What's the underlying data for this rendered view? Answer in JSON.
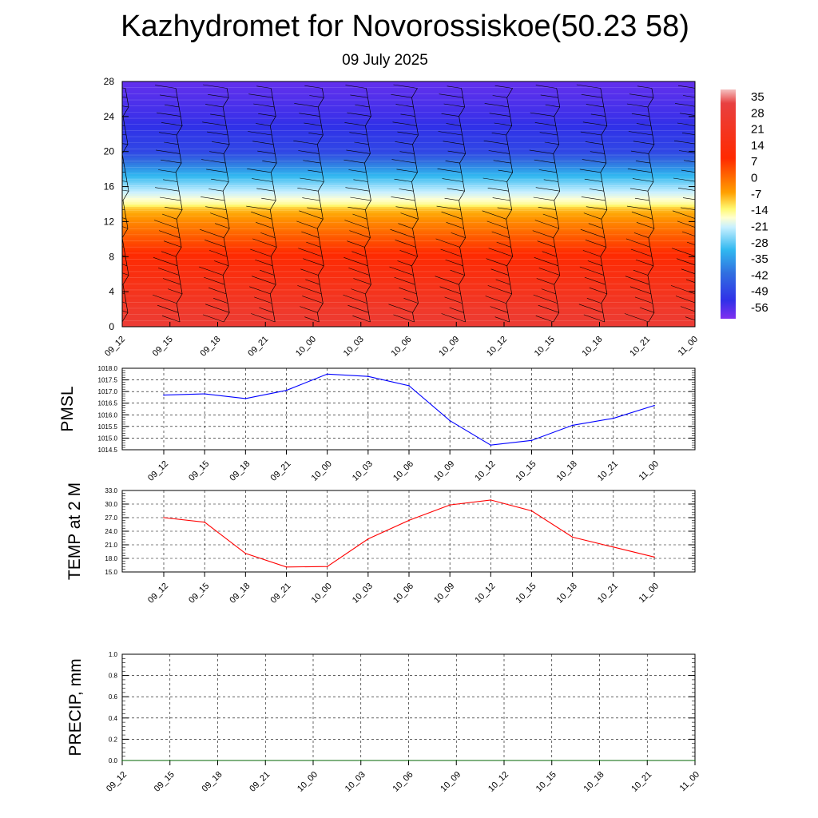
{
  "title": "Kazhydromet for Novorossiskoe(50.23 58)",
  "date": "09 July 2025",
  "colors": {
    "pmsl_line": "#0000ff",
    "temp_line": "#ff0000",
    "precip_line": "#006400",
    "barbs": "#000000"
  },
  "chart_data": [
    {
      "type": "heatmap",
      "title": "",
      "xlabel": "",
      "ylabel": "",
      "x_categories": [
        "09_12",
        "09_15",
        "09_18",
        "09_21",
        "10_00",
        "10_03",
        "10_06",
        "10_09",
        "10_12",
        "10_15",
        "10_18",
        "10_21",
        "11_00"
      ],
      "y_ticks": [
        "0",
        "4",
        "8",
        "12",
        "16",
        "20",
        "24",
        "28"
      ],
      "ylim": [
        0,
        28
      ],
      "colorbar_labels": [
        "35",
        "28",
        "21",
        "14",
        "7",
        "0",
        "-7",
        "-14",
        "-21",
        "-28",
        "-35",
        "-42",
        "-49",
        "-56"
      ],
      "colorbar_range": [
        -63,
        42
      ],
      "level_temperature": {
        "levels": [
          0,
          2,
          4,
          6,
          8,
          10,
          12,
          13.5,
          14,
          16,
          18,
          20,
          24,
          28
        ],
        "values": [
          32,
          27,
          22,
          17,
          12,
          5,
          -2,
          -8,
          -14,
          -24,
          -36,
          -50,
          -56,
          -60
        ]
      },
      "wind_barbs": true
    },
    {
      "type": "line",
      "title": "",
      "ylabel": "PMSL",
      "categories": [
        "09_12",
        "09_15",
        "09_18",
        "09_21",
        "10_00",
        "10_03",
        "10_06",
        "10_09",
        "10_12",
        "10_15",
        "10_18",
        "10_21",
        "11_00"
      ],
      "y_ticks": [
        "1014.5",
        "1015.0",
        "1015.5",
        "1016.0",
        "1016.5",
        "1017.0",
        "1017.5",
        "1018.0"
      ],
      "ylim": [
        1014.5,
        1018.0
      ],
      "grid": true,
      "series": [
        {
          "values": [
            1016.85,
            1016.9,
            1016.7,
            1017.05,
            1017.75,
            1017.65,
            1017.25,
            1015.75,
            1014.7,
            1014.9,
            1015.55,
            1015.85,
            1016.4
          ]
        }
      ]
    },
    {
      "type": "line",
      "title": "",
      "ylabel": "TEMP at 2 M",
      "categories": [
        "09_12",
        "09_15",
        "09_18",
        "09_21",
        "10_00",
        "10_03",
        "10_06",
        "10_09",
        "10_12",
        "10_15",
        "10_18",
        "10_21",
        "11_00"
      ],
      "y_ticks": [
        "15.0",
        "18.0",
        "21.0",
        "24.0",
        "27.0",
        "30.0",
        "33.0"
      ],
      "ylim": [
        15.0,
        33.0
      ],
      "grid": true,
      "series": [
        {
          "values": [
            27.0,
            26.0,
            19.1,
            16.1,
            16.2,
            22.3,
            26.4,
            29.8,
            30.9,
            28.5,
            22.7,
            20.5,
            18.3
          ]
        }
      ]
    },
    {
      "type": "line",
      "title": "",
      "ylabel": "PRECIP, mm",
      "categories": [
        "09_12",
        "09_15",
        "09_18",
        "09_21",
        "10_00",
        "10_03",
        "10_06",
        "10_09",
        "10_12",
        "10_15",
        "10_18",
        "10_21",
        "11_00"
      ],
      "y_ticks": [
        "0.0",
        "0.2",
        "0.4",
        "0.6",
        "0.8",
        "1.0"
      ],
      "ylim": [
        0.0,
        1.0
      ],
      "grid": true,
      "series": [
        {
          "values": [
            0,
            0,
            0,
            0,
            0,
            0,
            0,
            0,
            0,
            0,
            0,
            0,
            0
          ]
        }
      ]
    }
  ]
}
